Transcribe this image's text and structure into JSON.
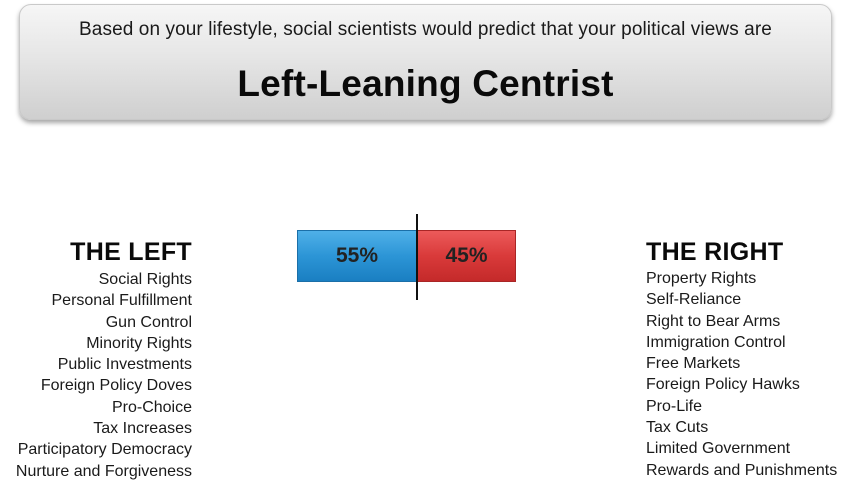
{
  "banner": {
    "subtitle": "Based on your lifestyle, social scientists would predict that your political views are",
    "result": "Left-Leaning Centrist"
  },
  "meter": {
    "left_percent": 55,
    "right_percent": 45,
    "left_label": "55%",
    "right_label": "45%",
    "left_color": "#2c95d6",
    "right_color": "#d93a3a"
  },
  "left": {
    "heading": "THE LEFT",
    "items": [
      "Social Rights",
      "Personal Fulfillment",
      "Gun Control",
      "Minority Rights",
      "Public Investments",
      "Foreign Policy Doves",
      "Pro-Choice",
      "Tax Increases",
      "Participatory Democracy",
      "Nurture and Forgiveness"
    ]
  },
  "right": {
    "heading": "THE RIGHT",
    "items": [
      "Property Rights",
      "Self-Reliance",
      "Right to Bear Arms",
      "Immigration Control",
      "Free Markets",
      "Foreign Policy Hawks",
      "Pro-Life",
      "Tax Cuts",
      "Limited Government",
      "Rewards and Punishments"
    ]
  }
}
